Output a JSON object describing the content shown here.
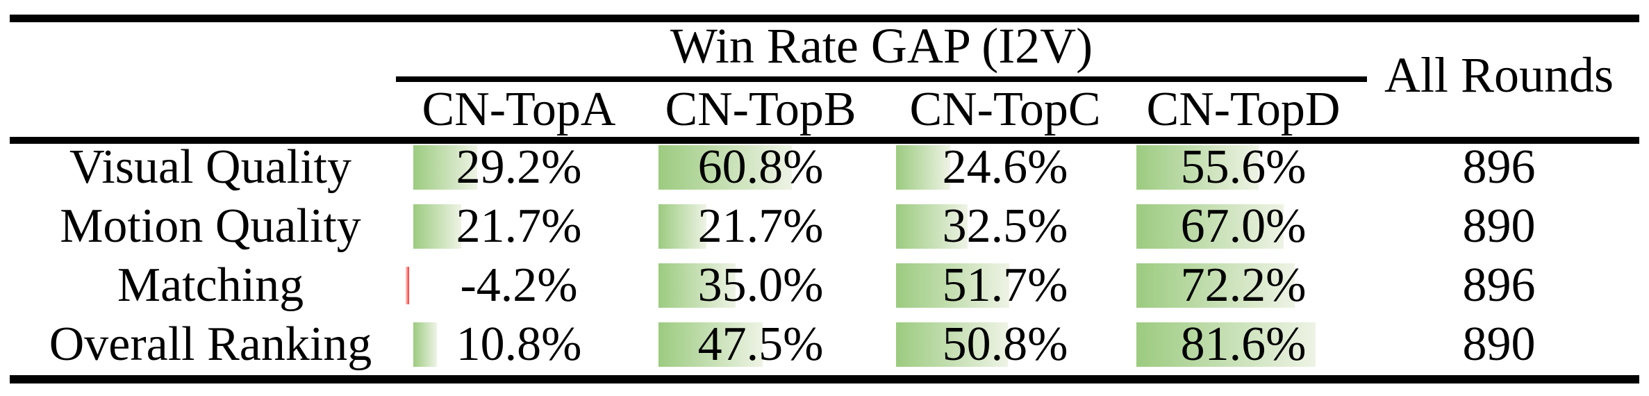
{
  "chart_data": {
    "type": "table",
    "group_header": "Win Rate GAP (I2V)",
    "columns": [
      "CN-TopA",
      "CN-TopB",
      "CN-TopC",
      "CN-TopD"
    ],
    "last_column_header": "All Rounds",
    "rows": [
      {
        "label": "Visual Quality",
        "values": [
          29.2,
          60.8,
          24.6,
          55.6
        ],
        "display": [
          "29.2%",
          "60.8%",
          "24.6%",
          "55.6%"
        ],
        "all_rounds": "896"
      },
      {
        "label": "Motion Quality",
        "values": [
          21.7,
          21.7,
          32.5,
          67.0
        ],
        "display": [
          "21.7%",
          "21.7%",
          "32.5%",
          "67.0%"
        ],
        "all_rounds": "890"
      },
      {
        "label": "Matching",
        "values": [
          -4.2,
          35.0,
          51.7,
          72.2
        ],
        "display": [
          "-4.2%",
          "35.0%",
          "51.7%",
          "72.2%"
        ],
        "all_rounds": "896"
      },
      {
        "label": "Overall Ranking",
        "values": [
          10.8,
          47.5,
          50.8,
          81.6
        ],
        "display": [
          "10.8%",
          "47.5%",
          "50.8%",
          "81.6%"
        ],
        "all_rounds": "890"
      }
    ],
    "bar_meaning": "cell background bar length proportional to win-rate gap; negative value drawn as thin red bar",
    "layout_hint": "grid off; bars embedded in table cells"
  },
  "colors": {
    "bar_green_start": "#9ccb80",
    "bar_green_end": "#eef3e5",
    "bar_red_start": "#ffd9d5",
    "bar_red_end": "#ff2f2f",
    "rule": "#000000",
    "text": "#000000",
    "background": "#ffffff"
  }
}
